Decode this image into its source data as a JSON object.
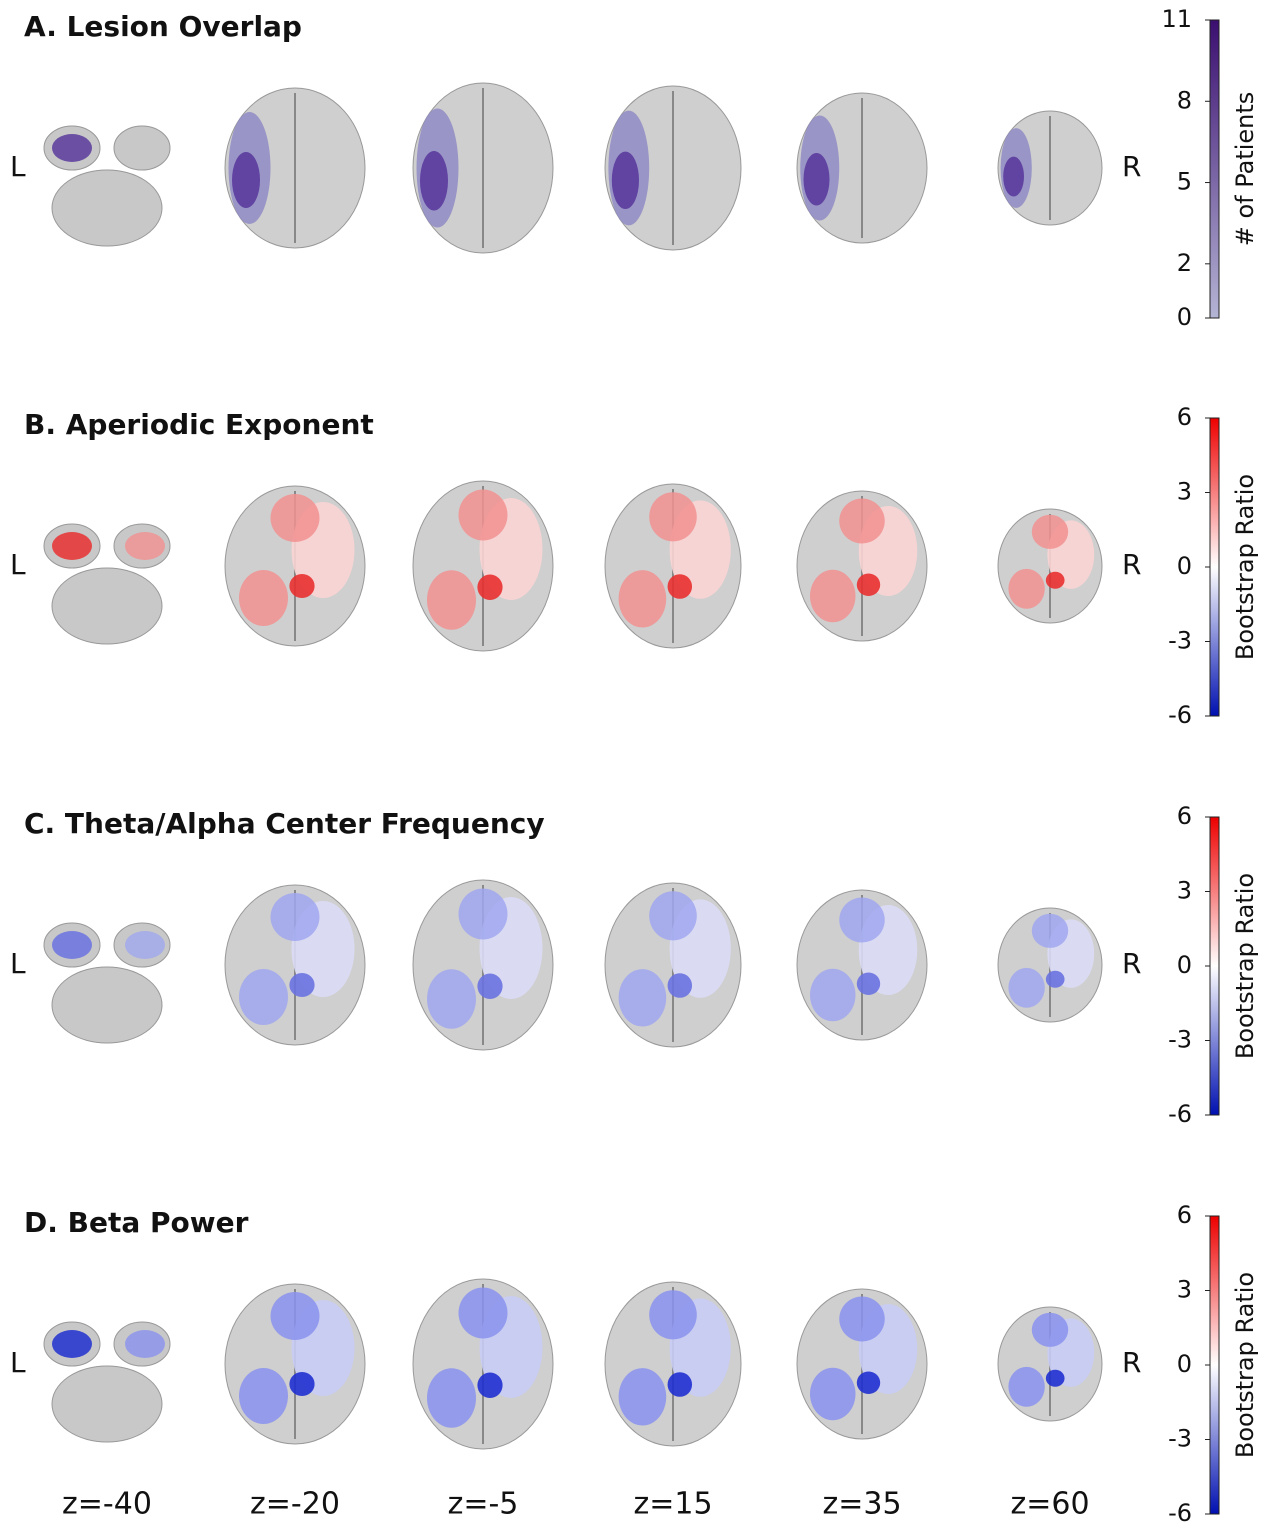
{
  "chart_data": [
    {
      "type": "brain-map",
      "title": "A. Lesion Overlap",
      "side_labels": [
        "L",
        "R"
      ],
      "colorbar_label": "# of Patients",
      "colormap": [
        "#b4b4d4",
        "#3b0f70"
      ],
      "ylim": [
        0,
        11
      ],
      "yticks": [
        0,
        2,
        5,
        8,
        11
      ]
    },
    {
      "type": "brain-map",
      "title": "B. Aperiodic Exponent",
      "side_labels": [
        "L",
        "R"
      ],
      "colorbar_label": "Bootstrap Ratio",
      "colormap": [
        "#0010b0",
        "#ffffff",
        "#ee0000"
      ],
      "ylim": [
        -6,
        6
      ],
      "yticks": [
        -6,
        -3,
        0,
        3,
        6
      ]
    },
    {
      "type": "brain-map",
      "title": "C. Theta/Alpha Center Frequency",
      "side_labels": [
        "L",
        "R"
      ],
      "colorbar_label": "Bootstrap Ratio",
      "colormap": [
        "#0010b0",
        "#ffffff",
        "#ee0000"
      ],
      "ylim": [
        -6,
        6
      ],
      "yticks": [
        -6,
        -3,
        0,
        3,
        6
      ]
    },
    {
      "type": "brain-map",
      "title": "D. Beta Power",
      "side_labels": [
        "L",
        "R"
      ],
      "colorbar_label": "Bootstrap Ratio",
      "colormap": [
        "#0010b0",
        "#ffffff",
        "#ee0000"
      ],
      "ylim": [
        -6,
        6
      ],
      "yticks": [
        -6,
        -3,
        0,
        3,
        6
      ],
      "slices": [
        "z=-40",
        "z=-20",
        "z=-5",
        "z=15",
        "z=35",
        "z=60"
      ]
    }
  ]
}
